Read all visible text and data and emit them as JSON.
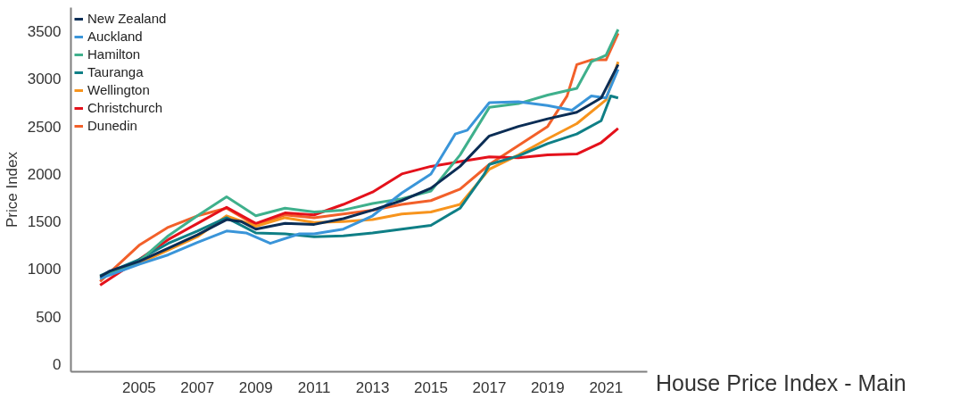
{
  "chart_data": {
    "type": "line",
    "ylabel": "Price Index",
    "annotations": [
      "House Price Index - Main"
    ],
    "xlim": [
      "2002-09",
      "2022-06"
    ],
    "xticks": [
      "2005",
      "2007",
      "2009",
      "2011",
      "2013",
      "2015",
      "2017",
      "2019",
      "2021"
    ],
    "ylim": [
      -80,
      3750
    ],
    "yticks": [
      0,
      500,
      1000,
      1500,
      2000,
      2500,
      3000,
      3500
    ],
    "grid": false,
    "legend": "top left",
    "line_style": "solid",
    "series": [
      {
        "name": "New Zealand",
        "color": "#0b2d55",
        "x": [
          "2003-09",
          "2004-01",
          "2005-01",
          "2006-01",
          "2007-01",
          "2008-01",
          "2008-07",
          "2009-01",
          "2010-01",
          "2011-01",
          "2012-01",
          "2013-01",
          "2014-01",
          "2015-01",
          "2016-01",
          "2017-01",
          "2018-01",
          "2019-01",
          "2020-01",
          "2020-11",
          "2021-06"
        ],
        "values": [
          920,
          980,
          1080,
          1220,
          1360,
          1520,
          1500,
          1420,
          1480,
          1470,
          1530,
          1620,
          1720,
          1850,
          2080,
          2400,
          2500,
          2580,
          2650,
          2800,
          3150
        ]
      },
      {
        "name": "Auckland",
        "color": "#3a95d9",
        "x": [
          "2003-09",
          "2005-01",
          "2006-01",
          "2007-01",
          "2008-01",
          "2008-09",
          "2009-07",
          "2010-07",
          "2011-01",
          "2012-01",
          "2013-01",
          "2014-01",
          "2015-01",
          "2015-11",
          "2016-04",
          "2017-01",
          "2018-01",
          "2019-01",
          "2019-11",
          "2020-07",
          "2021-01",
          "2021-06"
        ],
        "values": [
          900,
          1050,
          1150,
          1280,
          1400,
          1380,
          1270,
          1370,
          1370,
          1420,
          1560,
          1800,
          2000,
          2420,
          2460,
          2750,
          2760,
          2720,
          2670,
          2820,
          2800,
          3100
        ]
      },
      {
        "name": "Hamilton",
        "color": "#3fb08c",
        "x": [
          "2003-09",
          "2005-01",
          "2006-01",
          "2007-01",
          "2008-01",
          "2009-01",
          "2010-01",
          "2011-01",
          "2012-01",
          "2013-01",
          "2014-01",
          "2015-01",
          "2016-01",
          "2017-01",
          "2018-01",
          "2019-01",
          "2020-01",
          "2020-07",
          "2021-01",
          "2021-06"
        ],
        "values": [
          900,
          1080,
          1350,
          1560,
          1760,
          1560,
          1640,
          1600,
          1620,
          1690,
          1740,
          1820,
          2200,
          2700,
          2740,
          2830,
          2900,
          3180,
          3250,
          3520
        ]
      },
      {
        "name": "Tauranga",
        "color": "#0f7f86",
        "x": [
          "2003-09",
          "2005-01",
          "2006-01",
          "2007-01",
          "2008-01",
          "2009-01",
          "2010-01",
          "2011-01",
          "2012-01",
          "2013-01",
          "2014-01",
          "2015-01",
          "2016-01",
          "2016-11",
          "2017-01",
          "2018-01",
          "2019-01",
          "2020-01",
          "2020-11",
          "2021-03",
          "2021-06"
        ],
        "values": [
          930,
          1100,
          1270,
          1400,
          1540,
          1380,
          1370,
          1340,
          1350,
          1380,
          1420,
          1460,
          1640,
          2000,
          2100,
          2190,
          2320,
          2420,
          2560,
          2820,
          2800
        ]
      },
      {
        "name": "Wellington",
        "color": "#f7941d",
        "x": [
          "2003-09",
          "2005-01",
          "2006-01",
          "2007-01",
          "2008-01",
          "2009-01",
          "2010-01",
          "2011-01",
          "2012-01",
          "2013-01",
          "2014-01",
          "2015-01",
          "2016-01",
          "2017-01",
          "2018-01",
          "2019-01",
          "2020-01",
          "2021-01",
          "2021-06"
        ],
        "values": [
          920,
          1060,
          1200,
          1340,
          1560,
          1450,
          1540,
          1490,
          1500,
          1520,
          1580,
          1600,
          1680,
          2050,
          2200,
          2370,
          2530,
          2780,
          3180
        ]
      },
      {
        "name": "Christchurch",
        "color": "#e4111b",
        "x": [
          "2003-09",
          "2005-01",
          "2006-01",
          "2007-01",
          "2008-01",
          "2009-01",
          "2010-01",
          "2011-01",
          "2012-01",
          "2013-01",
          "2014-01",
          "2015-01",
          "2016-01",
          "2017-01",
          "2018-01",
          "2019-01",
          "2020-01",
          "2020-11",
          "2021-06"
        ],
        "values": [
          830,
          1100,
          1310,
          1480,
          1650,
          1480,
          1590,
          1570,
          1680,
          1810,
          2000,
          2080,
          2130,
          2180,
          2170,
          2200,
          2210,
          2330,
          2480
        ]
      },
      {
        "name": "Dunedin",
        "color": "#f2602a",
        "x": [
          "2003-09",
          "2005-01",
          "2006-01",
          "2007-01",
          "2008-01",
          "2009-01",
          "2010-01",
          "2011-01",
          "2012-01",
          "2013-01",
          "2014-01",
          "2015-01",
          "2016-01",
          "2017-01",
          "2018-01",
          "2019-01",
          "2019-09",
          "2020-01",
          "2020-07",
          "2021-01",
          "2021-06"
        ],
        "values": [
          870,
          1250,
          1440,
          1560,
          1640,
          1460,
          1570,
          1540,
          1580,
          1620,
          1680,
          1720,
          1840,
          2100,
          2300,
          2500,
          2820,
          3150,
          3200,
          3200,
          3480
        ]
      }
    ]
  }
}
